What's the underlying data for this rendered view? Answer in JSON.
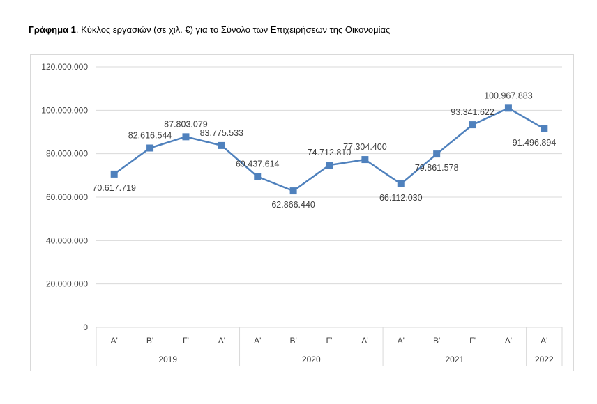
{
  "title": {
    "bold": "Γράφημα 1",
    "rest": ". Κύκλος εργασιών (σε χιλ. €) για το Σύνολο των Επιχειρήσεων της Οικονομίας"
  },
  "colors": {
    "line": "#4f81bd",
    "grid": "#d9d9d9",
    "text": "#404040"
  },
  "chart_data": {
    "type": "line",
    "title": "Γράφημα 1. Κύκλος εργασιών (σε χιλ. €) για το Σύνολο των Επιχειρήσεων της Οικονομίας",
    "categories": [
      "Α'",
      "Β'",
      "Γ'",
      "Δ'",
      "Α'",
      "Β'",
      "Γ'",
      "Δ'",
      "Α'",
      "Β'",
      "Γ'",
      "Δ'",
      "Α'"
    ],
    "groups": [
      {
        "label": "2019",
        "count": 4
      },
      {
        "label": "2020",
        "count": 4
      },
      {
        "label": "2021",
        "count": 4
      },
      {
        "label": "2022",
        "count": 1
      }
    ],
    "values": [
      70617719,
      82616544,
      87803079,
      83775533,
      69437614,
      62866440,
      74712810,
      77304400,
      66112030,
      79861578,
      93341622,
      100967883,
      91496894
    ],
    "value_labels": [
      "70.617.719",
      "82.616.544",
      "87.803.079",
      "83.775.533",
      "69.437.614",
      "62.866.440",
      "74.712.810",
      "77.304.400",
      "66.112.030",
      "79.861.578",
      "93.341.622",
      "100.967.883",
      "91.496.894"
    ],
    "label_positions": [
      "below",
      "above",
      "above",
      "above",
      "above",
      "below",
      "above",
      "above",
      "below",
      "below",
      "above",
      "above",
      "below"
    ],
    "yticks": [
      0,
      20000000,
      40000000,
      60000000,
      80000000,
      100000000,
      120000000
    ],
    "ytick_labels": [
      "0",
      "20.000.000",
      "40.000.000",
      "60.000.000",
      "80.000.000",
      "100.000.000",
      "120.000.000"
    ],
    "ylim": [
      0,
      120000000
    ],
    "grid": true,
    "legend": "none",
    "marker": "square",
    "xlabel": "",
    "ylabel": ""
  }
}
